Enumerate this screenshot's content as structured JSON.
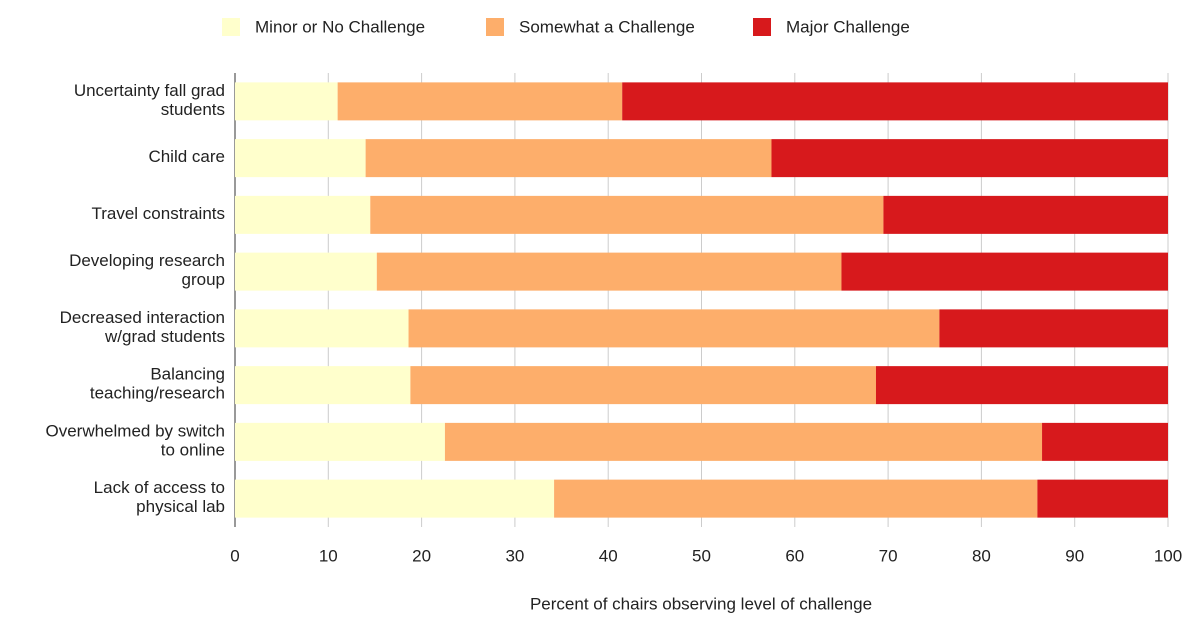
{
  "chart_data": {
    "type": "stacked-bar-horizontal",
    "x_label": "Percent of chairs observing level of challenge",
    "categories": [
      "Uncertainty fall grad students",
      "Child care",
      "Travel constraints",
      "Developing research group",
      "Decreased interaction w/grad students",
      "Balancing teaching/research",
      "Overwhelmed by switch to online",
      "Lack of access to physical lab"
    ],
    "series": [
      {
        "name": "Minor or No Challenge",
        "color": "#ffffcc",
        "values": [
          11,
          14,
          14.5,
          15.2,
          18.6,
          18.8,
          22.5,
          34.2
        ]
      },
      {
        "name": "Somewhat a Challenge",
        "color": "#fdae6b",
        "values": [
          30.5,
          43.5,
          55,
          49.8,
          56.9,
          49.9,
          64,
          51.8
        ]
      },
      {
        "name": "Major Challenge",
        "color": "#d7191c",
        "values": [
          58.5,
          42.5,
          30.5,
          35,
          24.5,
          31.3,
          13.5,
          14
        ]
      }
    ],
    "xlim": [
      0,
      100
    ],
    "xticks": [
      0,
      10,
      20,
      30,
      40,
      50,
      60,
      70,
      80,
      90,
      100
    ],
    "grid": true,
    "legend": "top"
  }
}
